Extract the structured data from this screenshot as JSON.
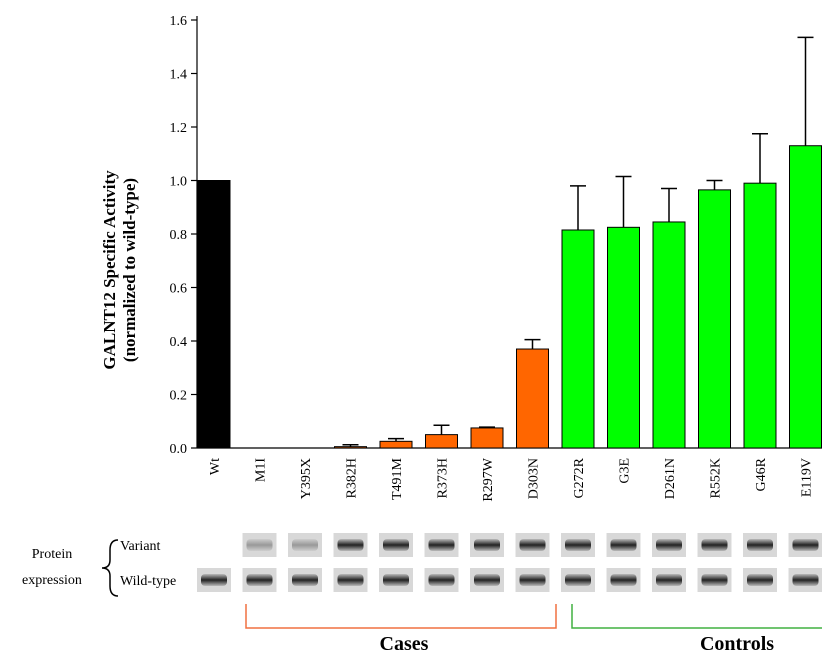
{
  "chart_data": {
    "type": "bar",
    "y_label": [
      "GALNT12 Specific Activity",
      "(normalized to wild-type)"
    ],
    "categories": [
      "Wt",
      "M1I",
      "Y395X",
      "R382H",
      "T491M",
      "R373H",
      "R297W",
      "D303N",
      "G272R",
      "G3E",
      "D261N",
      "R552K",
      "G46R",
      "E119V"
    ],
    "values": [
      1.0,
      0,
      0,
      0.005,
      0.025,
      0.05,
      0.075,
      0.37,
      0.815,
      0.825,
      0.845,
      0.965,
      0.99,
      1.13
    ],
    "errors": [
      null,
      null,
      null,
      0.007,
      0.01,
      0.035,
      0.003,
      0.035,
      0.165,
      0.19,
      0.125,
      0.035,
      0.185,
      0.405
    ],
    "colors": [
      "#000000",
      "#ff6600",
      "#ff6600",
      "#ff6600",
      "#ff6600",
      "#ff6600",
      "#ff6600",
      "#ff6600",
      "#00ff00",
      "#00ff00",
      "#00ff00",
      "#00ff00",
      "#00ff00",
      "#00ff00"
    ],
    "ylim": [
      0,
      1.6
    ],
    "yticks": [
      {
        "value": 0,
        "label": "0.0"
      },
      0.2,
      0.4,
      0.6,
      0.8,
      {
        "value": 1,
        "label": "1.0"
      },
      1.2,
      1.4,
      1.6
    ],
    "blot_title": [
      "Protein",
      "expression"
    ],
    "blot_rows": [
      "Variant",
      "Wild-type"
    ],
    "group_labels": [
      "Cases",
      "Controls"
    ]
  }
}
